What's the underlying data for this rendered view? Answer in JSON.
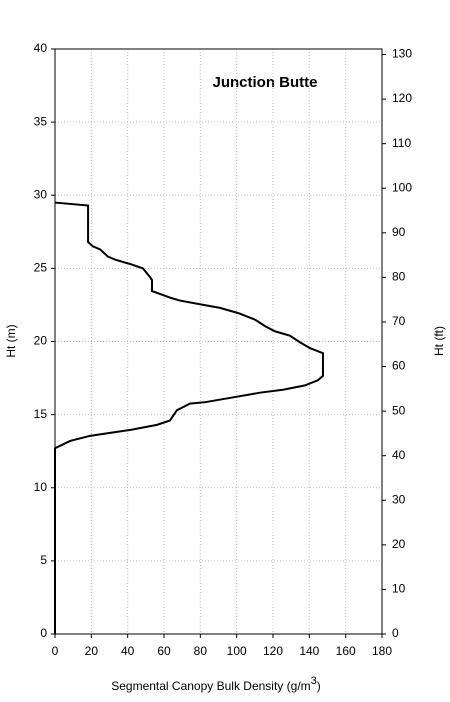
{
  "chart_data": {
    "type": "line",
    "title": "Junction Butte",
    "xlabel": [
      "Segmental Canopy Bulk Density (g/m",
      "3",
      ")"
    ],
    "ylabel": "Ht (m)",
    "y2label": "Ht (ft)",
    "x": [
      0,
      18.2,
      18.2,
      20.9,
      24.8,
      29.2,
      33,
      41.3,
      48.4,
      52.3,
      53.4,
      53.4,
      57.8,
      63.3,
      68.8,
      79.8,
      90.8,
      100.7,
      110,
      115.6,
      121,
      129.3,
      134.8,
      140.3,
      147.5,
      147.5,
      144.7,
      137.6,
      125.5,
      112.8,
      99,
      82.6,
      74.3,
      67.1,
      63.3,
      56.1,
      41.3,
      30.3,
      19.3,
      8.3,
      0,
      0
    ],
    "series": [
      {
        "color": "#000000",
        "values": [
          29.5,
          29.3,
          26.8,
          26.5,
          26.3,
          25.8,
          25.6,
          25.3,
          25.0,
          24.4,
          24.2,
          23.45,
          23.25,
          23.0,
          22.8,
          22.55,
          22.3,
          21.95,
          21.5,
          21.05,
          20.7,
          20.4,
          19.95,
          19.55,
          19.2,
          17.65,
          17.35,
          17.0,
          16.7,
          16.5,
          16.2,
          15.85,
          15.75,
          15.3,
          14.6,
          14.3,
          13.95,
          13.75,
          13.55,
          13.2,
          12.7,
          0
        ]
      }
    ],
    "xlim": [
      0,
      180
    ],
    "xticks": [
      0,
      20,
      40,
      60,
      80,
      100,
      120,
      140,
      160,
      180
    ],
    "ylim": [
      0,
      40
    ],
    "yticks": [
      0,
      5,
      10,
      15,
      20,
      25,
      30,
      35,
      40
    ],
    "y2lim": [
      0,
      131.234
    ],
    "y2ticks": [
      0,
      10,
      20,
      30,
      40,
      50,
      60,
      70,
      80,
      90,
      100,
      110,
      120,
      130
    ],
    "grid": true
  }
}
